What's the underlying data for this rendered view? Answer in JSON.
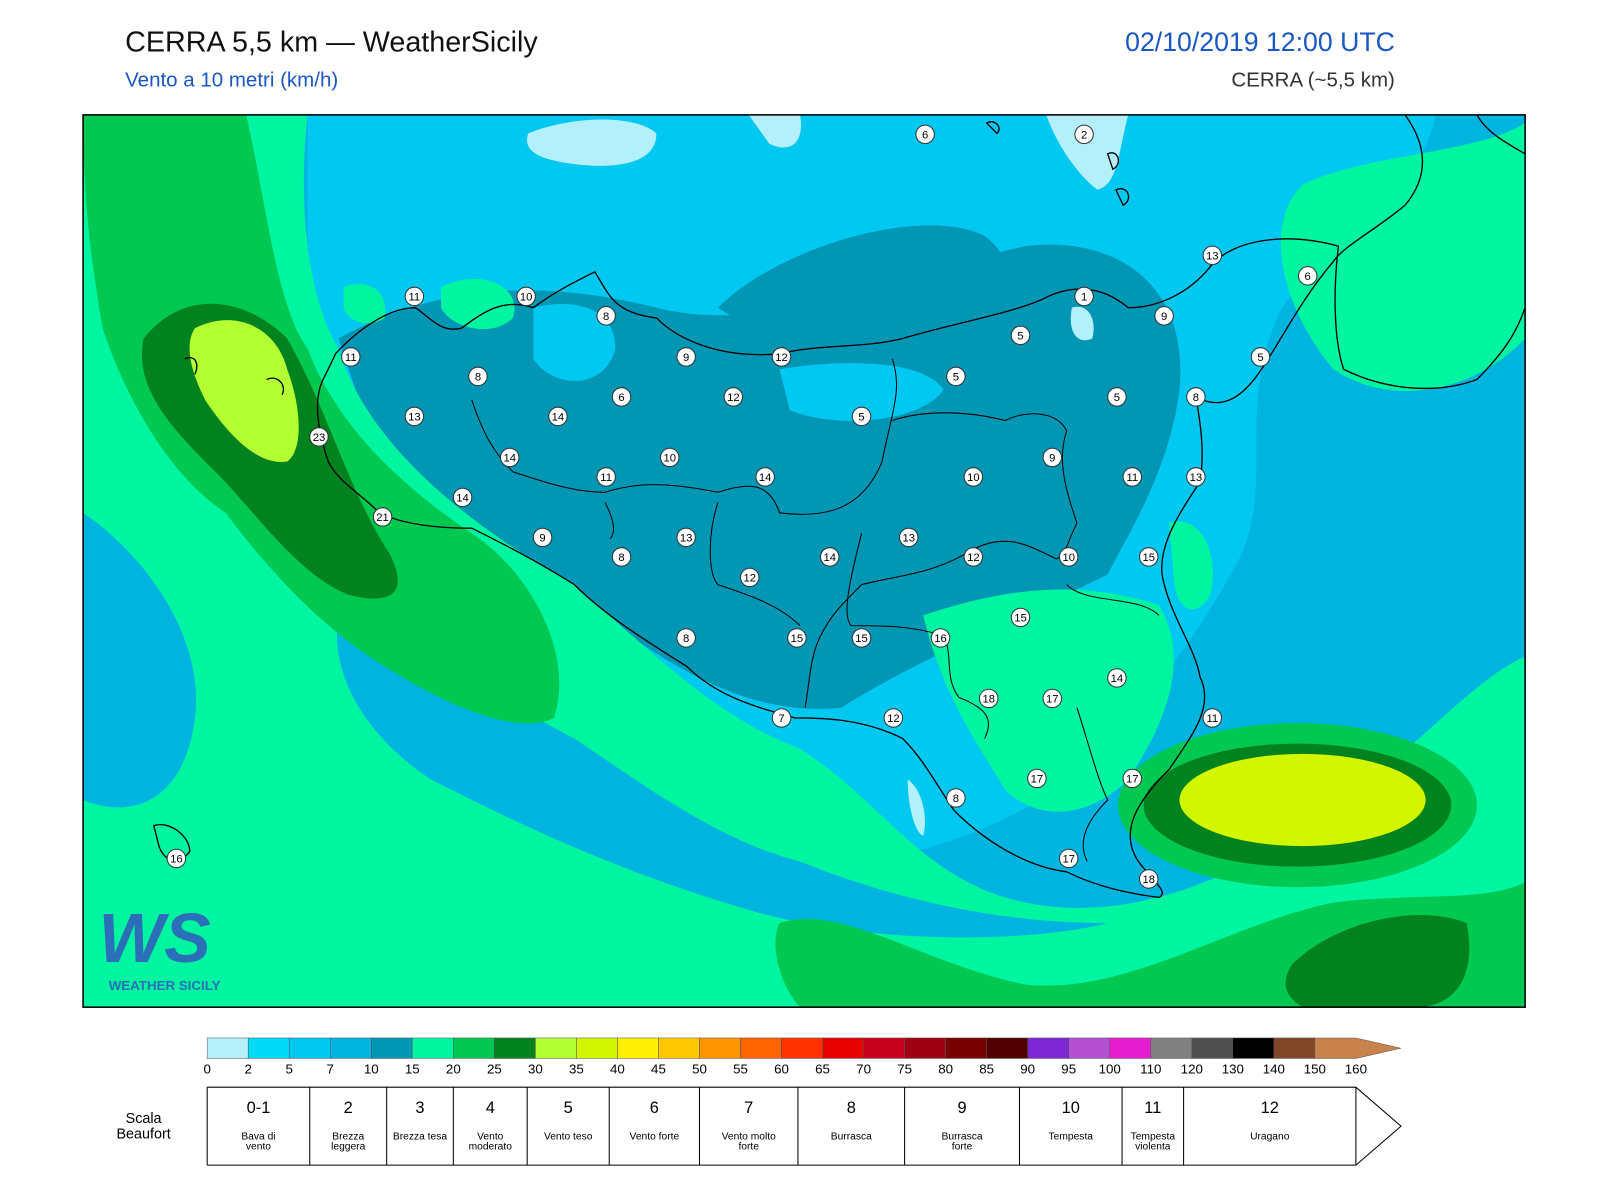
{
  "header": {
    "title": "CERRA 5,5 km — WeatherSicily",
    "subtitle": "Vento a 10 metri (km/h)",
    "date": "02/10/2019 12:00 UTC",
    "model": "CERRA (~5,5 km)"
  },
  "logo": {
    "letters": "WS",
    "text": "WEATHER SICILY"
  },
  "stations": [
    6,
    2,
    13,
    6,
    11,
    10,
    1,
    9,
    8,
    5,
    11,
    9,
    12,
    5,
    8,
    5,
    6,
    12,
    5,
    8,
    13,
    14,
    5,
    23,
    10,
    14,
    9,
    11,
    14,
    10,
    11,
    13,
    14,
    21,
    9,
    13,
    13,
    8,
    14,
    12,
    10,
    15,
    12,
    15,
    8,
    15,
    15,
    16,
    14,
    18,
    17,
    7,
    12,
    11,
    17,
    17,
    8,
    17,
    18,
    16
  ],
  "colorbar": {
    "ticks": [
      0,
      2,
      5,
      7,
      10,
      15,
      20,
      25,
      30,
      35,
      40,
      45,
      50,
      55,
      60,
      65,
      70,
      75,
      80,
      85,
      90,
      95,
      100,
      110,
      120,
      130,
      140,
      150,
      160
    ],
    "colors": [
      "#b4f0fa",
      "#00dcf8",
      "#00c8f0",
      "#00b4e0",
      "#0096b4",
      "#00f5a0",
      "#00c850",
      "#00821e",
      "#b4ff32",
      "#d2f500",
      "#fff000",
      "#ffc800",
      "#ff9600",
      "#ff6400",
      "#ff3200",
      "#e60000",
      "#c8001e",
      "#a00014",
      "#780000",
      "#500000",
      "#7d28d2",
      "#b450d2",
      "#e61ed2",
      "#808080",
      "#505050",
      "#000000",
      "#824628",
      "#c8824b"
    ]
  },
  "beaufort": {
    "title": "Scala Beaufort",
    "forces": [
      {
        "force": "0-1",
        "label": "Bava di vento"
      },
      {
        "force": "2",
        "label": "Brezza leggera"
      },
      {
        "force": "3",
        "label": "Brezza tesa"
      },
      {
        "force": "4",
        "label": "Vento moderato"
      },
      {
        "force": "5",
        "label": "Vento teso"
      },
      {
        "force": "6",
        "label": "Vento forte"
      },
      {
        "force": "7",
        "label": "Vento molto forte"
      },
      {
        "force": "8",
        "label": "Burrasca"
      },
      {
        "force": "9",
        "label": "Burrasca forte"
      },
      {
        "force": "10",
        "label": "Tempesta"
      },
      {
        "force": "11",
        "label": "Tempesta violenta"
      },
      {
        "force": "12",
        "label": "Uragano"
      }
    ]
  }
}
